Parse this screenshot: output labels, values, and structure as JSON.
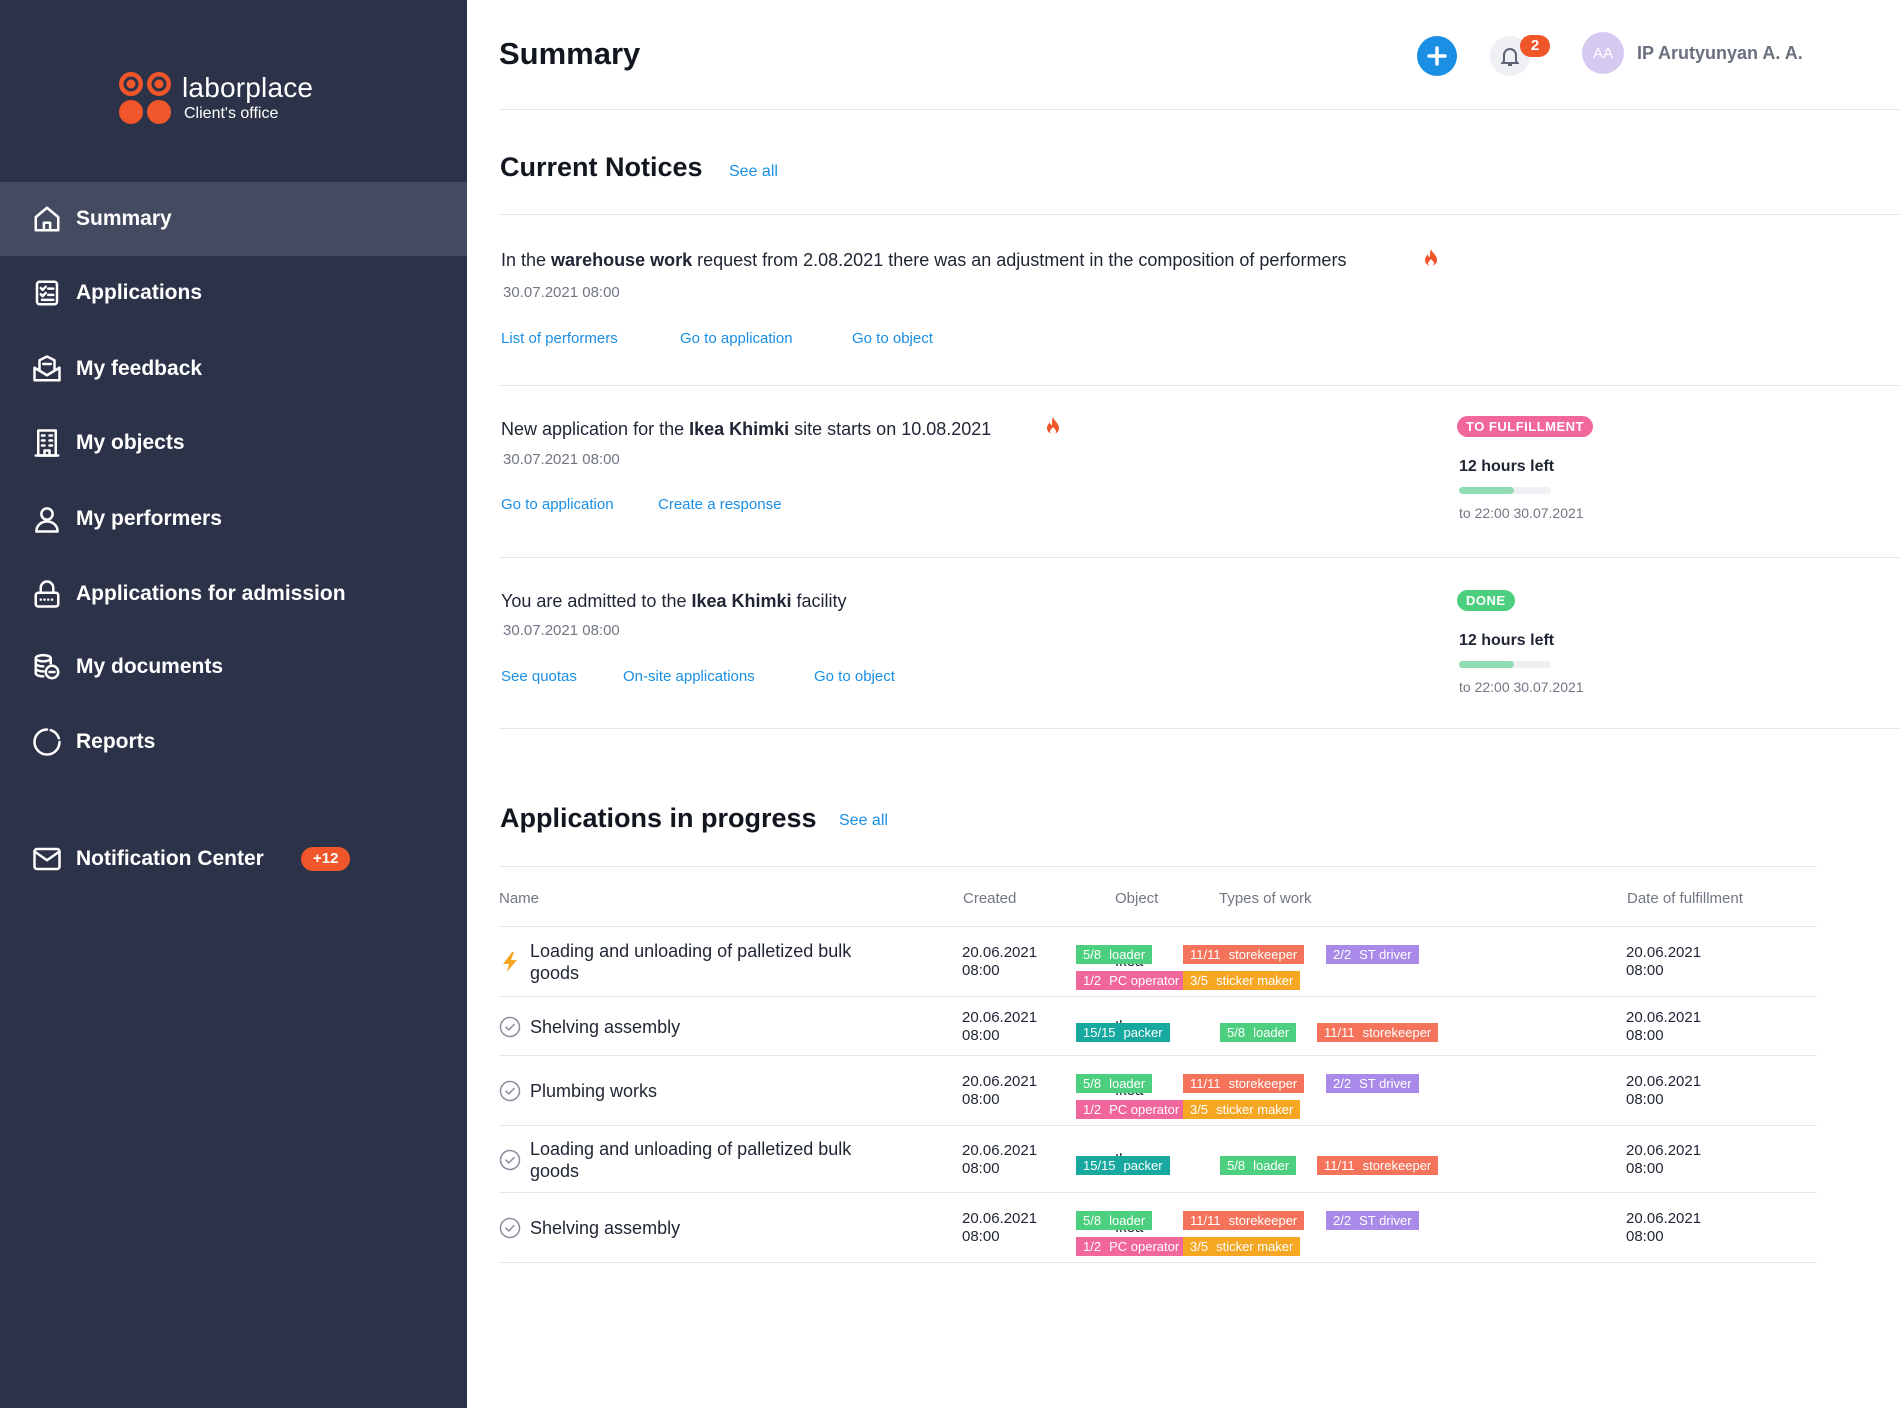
{
  "sidebar": {
    "logo_title": "laborplace",
    "logo_subtitle": "Client's office",
    "items": [
      {
        "label": "Summary",
        "icon": "home-icon"
      },
      {
        "label": "Applications",
        "icon": "checklist-icon"
      },
      {
        "label": "My feedback",
        "icon": "feedback-icon"
      },
      {
        "label": "My objects",
        "icon": "building-icon"
      },
      {
        "label": "My performers",
        "icon": "person-icon"
      },
      {
        "label": "Applications for admission",
        "icon": "lock-icon"
      },
      {
        "label": "My documents",
        "icon": "documents-icon"
      },
      {
        "label": "Reports",
        "icon": "pie-chart-icon"
      }
    ],
    "notification_center": {
      "label": "Notification Center",
      "badge": "+12",
      "icon": "mail-icon"
    }
  },
  "header": {
    "title": "Summary",
    "bell_count": "2",
    "avatar_initials": "AA",
    "user_name": "IP Arutyunyan A. A."
  },
  "notices": {
    "title": "Current Notices",
    "see_all": "See all",
    "items": [
      {
        "pre": "In the ",
        "bold": "warehouse work",
        "post": " request from 2.08.2021 there was an adjustment in the composition of performers",
        "date": "30.07.2021 08:00",
        "links": [
          "List of performers",
          "Go to application",
          "Go to object"
        ]
      },
      {
        "pre": "New application for the ",
        "bold": "Ikea Khimki",
        "post": " site starts on 10.08.2021",
        "date": "30.07.2021 08:00",
        "links": [
          "Go to application",
          "Create a response"
        ],
        "status": "TO FULFILLMENT",
        "status_color": "#f2679b",
        "hours_left": "12 hours left",
        "progress": 0.6,
        "deadline": "to 22:00 30.07.2021"
      },
      {
        "pre": "You are admitted to the ",
        "bold": "Ikea Khimki",
        "post": " facility",
        "date": "30.07.2021 08:00",
        "links": [
          "See quotas",
          "On-site applications",
          "Go to object"
        ],
        "status": "DONE",
        "status_color": "#4ccf7e",
        "hours_left": "12 hours left",
        "progress": 0.6,
        "deadline": "to 22:00 30.07.2021"
      }
    ]
  },
  "applications": {
    "title": "Applications in progress",
    "see_all": "See all",
    "columns": [
      "Name",
      "Created",
      "Object",
      "Types of work",
      "Date of fulfillment"
    ],
    "rows": [
      {
        "icon": "lightning-icon",
        "name": "Loading and unloading of palletized bulk goods",
        "created_date": "20.06.2021",
        "created_time": "08:00",
        "object": "Ikea",
        "tag_set": "a",
        "fulfill_date": "20.06.2021",
        "fulfill_time": "08:00"
      },
      {
        "icon": "check-circle-icon",
        "name": "Shelving assembly",
        "created_date": "20.06.2021",
        "created_time": "08:00",
        "object": "Ikea",
        "tag_set": "b",
        "fulfill_date": "20.06.2021",
        "fulfill_time": "08:00"
      },
      {
        "icon": "check-circle-icon",
        "name": "Plumbing works",
        "created_date": "20.06.2021",
        "created_time": "08:00",
        "object": "Ikea",
        "tag_set": "a",
        "fulfill_date": "20.06.2021",
        "fulfill_time": "08:00"
      },
      {
        "icon": "check-circle-icon",
        "name": "Loading and unloading of palletized bulk goods",
        "created_date": "20.06.2021",
        "created_time": "08:00",
        "object": "Ikea",
        "tag_set": "b",
        "fulfill_date": "20.06.2021",
        "fulfill_time": "08:00"
      },
      {
        "icon": "check-circle-icon",
        "name": "Shelving assembly",
        "created_date": "20.06.2021",
        "created_time": "08:00",
        "object": "Ikea",
        "tag_set": "a",
        "fulfill_date": "20.06.2021",
        "fulfill_time": "08:00"
      }
    ],
    "tag_sets": {
      "a": [
        {
          "count": "5/8",
          "label": "loader",
          "color": "#4ccf7e"
        },
        {
          "count": "11/11",
          "label": "storekeeper",
          "color": "#f5735a"
        },
        {
          "count": "2/2",
          "label": "ST driver",
          "color": "#a98ae8"
        },
        {
          "count": "1/2",
          "label": "PC operator",
          "color": "#f2679b"
        },
        {
          "count": "3/5",
          "label": "sticker maker",
          "color": "#f5a623"
        }
      ],
      "b": [
        {
          "count": "15/15",
          "label": "packer",
          "color": "#17a8a0"
        },
        {
          "count": "5/8",
          "label": "loader",
          "color": "#4ccf7e"
        },
        {
          "count": "11/11",
          "label": "storekeeper",
          "color": "#f5735a"
        }
      ]
    }
  }
}
